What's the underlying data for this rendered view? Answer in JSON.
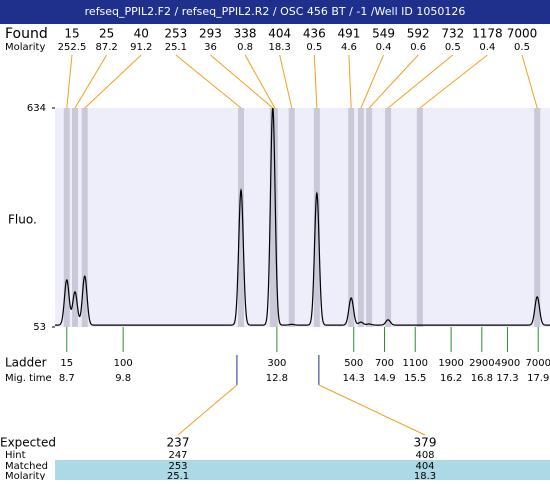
{
  "title": "refseq_PPIL2.F2 / refseq_PPIL2.R2 / OSC 456 BT / -1 /Well ID 1050126",
  "row_labels": {
    "found": "Found",
    "molarity": "Molarity",
    "fluo": "Fluo.",
    "ladder": "Ladder",
    "mig_time": "Mig. time",
    "expected": "Expected",
    "hint": "Hint",
    "matched": "Matched",
    "expected_molarity": "Molarity"
  },
  "y_axis": {
    "lim": [
      53,
      634
    ],
    "ticks": [
      53,
      634
    ]
  },
  "x_axis": {
    "lim": [
      8.47,
      18.13
    ]
  },
  "baseline": 58,
  "found_peaks": [
    {
      "size": 15,
      "molarity": 252.5,
      "time": 8.7,
      "height": 178
    },
    {
      "size": 25,
      "molarity": 87.2,
      "time": 8.86,
      "height": 146
    },
    {
      "size": 40,
      "molarity": 91.2,
      "time": 9.05,
      "height": 188
    },
    {
      "size": 253,
      "molarity": 25.1,
      "time": 12.1,
      "height": 416
    },
    {
      "size": 293,
      "molarity": 36,
      "time": 12.72,
      "height": 634
    },
    {
      "size": 338,
      "molarity": 0.8,
      "time": 12.76,
      "height": 60
    },
    {
      "size": 404,
      "molarity": 18.3,
      "time": 13.09,
      "height": 60
    },
    {
      "size": 436,
      "molarity": 0.5,
      "time": 13.58,
      "height": 408
    },
    {
      "size": 491,
      "molarity": 4.6,
      "time": 14.25,
      "height": 130
    },
    {
      "size": 549,
      "molarity": 0.4,
      "time": 14.44,
      "height": 66
    },
    {
      "size": 592,
      "molarity": 0.6,
      "time": 14.6,
      "height": 61
    },
    {
      "size": 732,
      "molarity": 0.5,
      "time": 14.97,
      "height": 72
    },
    {
      "size": 1178,
      "molarity": 0.4,
      "time": 15.59,
      "height": 58
    },
    {
      "size": 7000,
      "molarity": 0.5,
      "time": 17.88,
      "height": 133
    }
  ],
  "ladder": [
    {
      "size": 15,
      "time": 8.7
    },
    {
      "size": 100,
      "time": 9.8
    },
    {
      "size": 300,
      "time": 12.8
    },
    {
      "size": 500,
      "time": 14.3
    },
    {
      "size": 700,
      "time": 14.9
    },
    {
      "size": 1100,
      "time": 15.5
    },
    {
      "size": 1900,
      "time": 16.2
    },
    {
      "size": 2900,
      "time": 16.8
    },
    {
      "size": 4900,
      "time": 17.3
    },
    {
      "size": 7000,
      "time": 17.9
    }
  ],
  "expected": [
    {
      "size": 237,
      "hint": 247,
      "matched": 253,
      "molarity": 25.1,
      "time": 12.02
    },
    {
      "size": 379,
      "hint": 408,
      "matched": 404,
      "molarity": 18.3,
      "time": 13.62
    }
  ]
}
